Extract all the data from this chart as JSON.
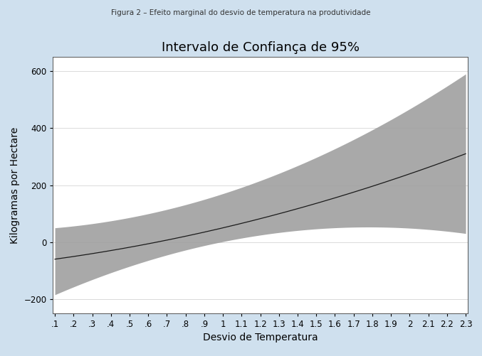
{
  "title": "Intervalo de Confiança de 95%",
  "xlabel": "Desvio de Temperatura",
  "ylabel": "Kilogramas por Hectare",
  "x_start": 0.1,
  "x_end": 2.3,
  "ylim": [
    -250,
    650
  ],
  "yticks": [
    -200,
    0,
    200,
    400,
    600
  ],
  "xtick_labels": [
    ".1",
    ".2",
    ".3",
    ".4",
    ".5",
    ".6",
    ".7",
    ".8",
    ".9",
    "1",
    "1.1",
    "1.2",
    "1.3",
    "1.4",
    "1.5",
    "1.6",
    "1.7",
    "1.8",
    "1.9",
    "2",
    "2.1",
    "2.2",
    "2.3"
  ],
  "xtick_values": [
    0.1,
    0.2,
    0.3,
    0.4,
    0.5,
    0.6,
    0.7,
    0.8,
    0.9,
    1.0,
    1.1,
    1.2,
    1.3,
    1.4,
    1.5,
    1.6,
    1.7,
    1.8,
    1.9,
    2.0,
    2.1,
    2.2,
    2.3
  ],
  "background_color": "#cfe0ee",
  "plot_bg_color": "#ffffff",
  "band_color": "#a0a0a0",
  "line_color": "#1a1a1a",
  "title_fontsize": 13,
  "label_fontsize": 10,
  "tick_fontsize": 8.5,
  "suptitle": "Figura 2 – Efeito marginal do desvio de temperatura na produtividade",
  "suptitle_fontsize": 7.5,
  "mean_coeffs": [
    -68.7,
    83.3,
    35.4
  ],
  "upper_coeffs": [
    45.3,
    38.4,
    86.3
  ],
  "lower_coeffs": [
    -214.2,
    300.1,
    -84.3
  ]
}
